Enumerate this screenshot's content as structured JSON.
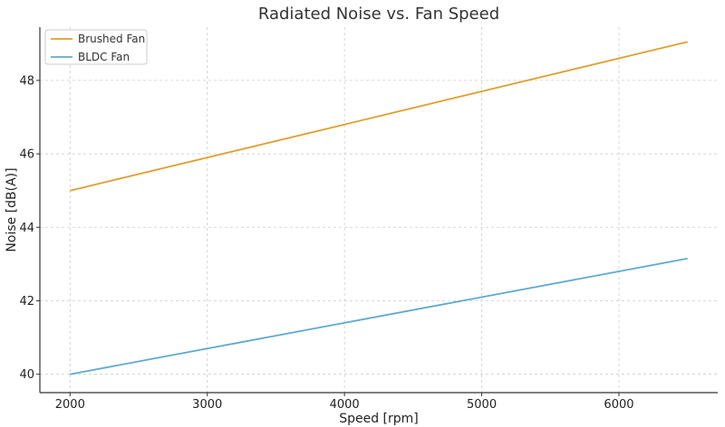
{
  "chart_data": {
    "type": "line",
    "title": "Radiated Noise vs. Fan Speed",
    "xlabel": "Speed [rpm]",
    "ylabel": "Noise [dB(A)]",
    "xlim": [
      1780,
      6720
    ],
    "ylim": [
      39.5,
      49.45
    ],
    "xticks": [
      2000,
      3000,
      4000,
      5000,
      6000
    ],
    "yticks": [
      40,
      42,
      44,
      46,
      48
    ],
    "grid": true,
    "legend_position": "top-left",
    "series": [
      {
        "name": "Brushed Fan",
        "color": "#dda030",
        "x": [
          2000,
          6500
        ],
        "y": [
          45.0,
          49.05
        ]
      },
      {
        "name": "BLDC Fan",
        "color": "#5ea9cf",
        "x": [
          2000,
          6500
        ],
        "y": [
          40.0,
          43.15
        ]
      }
    ]
  }
}
